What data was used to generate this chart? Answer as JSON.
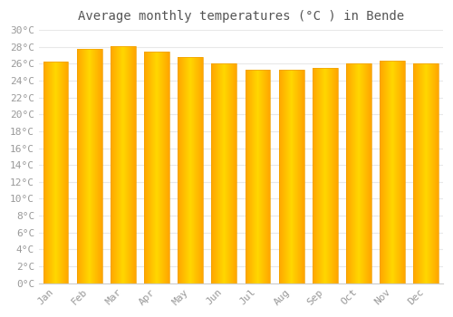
{
  "title": "Average monthly temperatures (°C ) in Bende",
  "months": [
    "Jan",
    "Feb",
    "Mar",
    "Apr",
    "May",
    "Jun",
    "Jul",
    "Aug",
    "Sep",
    "Oct",
    "Nov",
    "Dec"
  ],
  "values": [
    26.3,
    27.8,
    28.1,
    27.5,
    26.8,
    26.0,
    25.3,
    25.3,
    25.5,
    26.0,
    26.4,
    26.0
  ],
  "bar_color_center": "#FFD700",
  "bar_color_edge": "#FFA500",
  "background_color": "#FFFFFF",
  "grid_color": "#E8E8E8",
  "ylim": [
    0,
    30
  ],
  "ytick_step": 2,
  "title_fontsize": 10,
  "tick_fontsize": 8,
  "tick_color": "#999999",
  "title_color": "#555555",
  "bar_width": 0.75
}
